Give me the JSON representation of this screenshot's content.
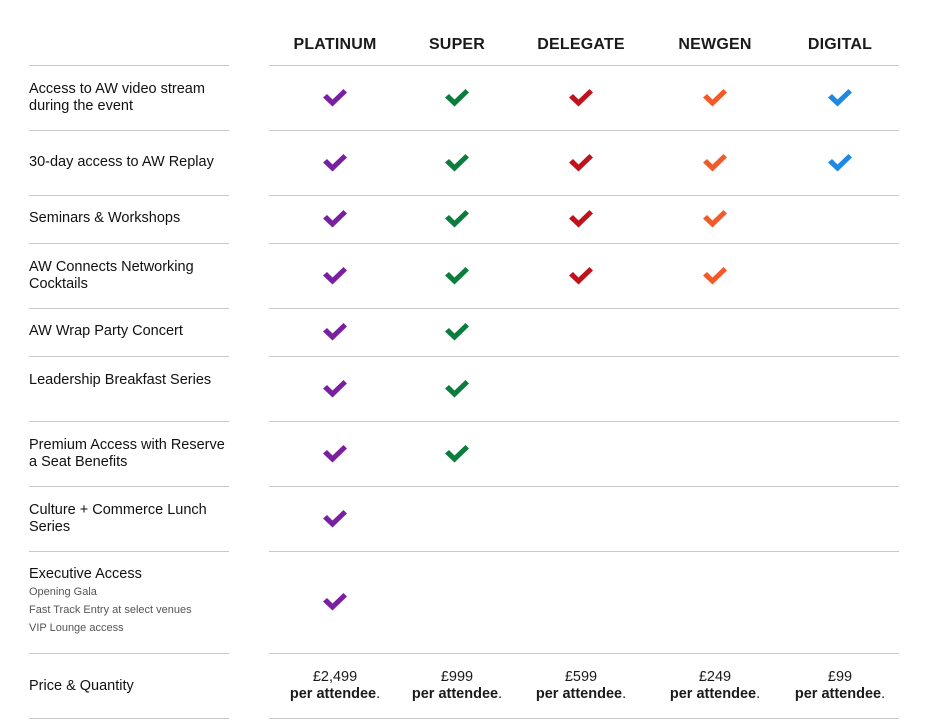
{
  "tiers": [
    {
      "label": "PLATINUM",
      "color": "#7a1fa2",
      "price": "£2,499"
    },
    {
      "label": "SUPER",
      "color": "#0a7d3c",
      "price": "£999"
    },
    {
      "label": "DELEGATE",
      "color": "#c0121c",
      "price": "£599"
    },
    {
      "label": "NEWGEN",
      "color": "#f25a29",
      "price": "£249"
    },
    {
      "label": "DIGITAL",
      "color": "#1e88e5",
      "price": "£99"
    }
  ],
  "price_suffix": "per attendee",
  "price_period": ".",
  "features": [
    {
      "label": "Access to AW video stream during the event",
      "tiers": [
        true,
        true,
        true,
        true,
        true
      ]
    },
    {
      "label": "30-day access to AW Replay",
      "tiers": [
        true,
        true,
        true,
        true,
        true
      ]
    },
    {
      "label": "Seminars & Workshops",
      "tiers": [
        true,
        true,
        true,
        true,
        false
      ]
    },
    {
      "label": "AW Connects Networking Cocktails",
      "tiers": [
        true,
        true,
        true,
        true,
        false
      ]
    },
    {
      "label": "AW Wrap Party Concert",
      "tiers": [
        true,
        true,
        false,
        false,
        false
      ]
    },
    {
      "label": "Leadership Breakfast Series",
      "tiers": [
        true,
        true,
        false,
        false,
        false
      ]
    },
    {
      "label": "Premium Access with Reserve a Seat Benefits",
      "tiers": [
        true,
        true,
        false,
        false,
        false
      ]
    },
    {
      "label": "Culture + Commerce Lunch Series",
      "tiers": [
        true,
        false,
        false,
        false,
        false
      ]
    },
    {
      "label": "Executive Access",
      "sub": [
        "Opening Gala",
        "Fast Track Entry at select venues",
        "VIP Lounge access"
      ],
      "tiers": [
        true,
        false,
        false,
        false,
        false
      ]
    }
  ],
  "price_row_label": "Price & Quantity",
  "check_icon": "checkmark-icon"
}
